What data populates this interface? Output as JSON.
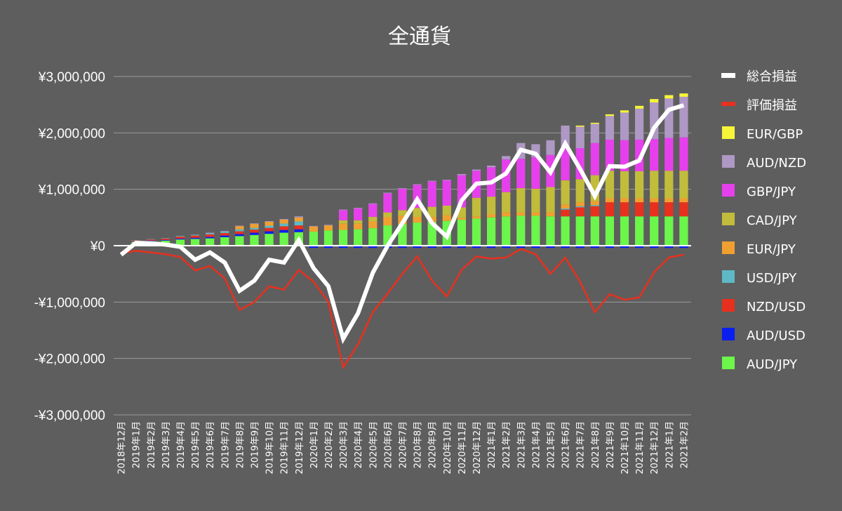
{
  "chart_data": {
    "type": "bar",
    "title": "全通貨",
    "ylim": [
      -3000000,
      3000000
    ],
    "yticks": [
      3000000,
      2000000,
      1000000,
      0,
      -1000000,
      -2000000,
      -3000000
    ],
    "ytick_labels": [
      "¥3,000,000",
      "¥2,000,000",
      "¥1,000,000",
      "¥0",
      "-¥1,000,000",
      "-¥2,000,000",
      "-¥3,000,000"
    ],
    "grid": true,
    "legend_position": "right",
    "categories": [
      "2018年12月",
      "2019年1月",
      "2019年2月",
      "2019年3月",
      "2019年4月",
      "2019年5月",
      "2019年6月",
      "2019年7月",
      "2019年8月",
      "2019年9月",
      "2019年10月",
      "2019年11月",
      "2019年12月",
      "2020年1月",
      "2020年2月",
      "2020年3月",
      "2020年4月",
      "2020年5月",
      "2020年6月",
      "2020年7月",
      "2020年8月",
      "2020年9月",
      "2020年10月",
      "2020年11月",
      "2020年12月",
      "2021年1月",
      "2021年2月",
      "2021年3月",
      "2021年4月",
      "2021年5月",
      "2021年6月",
      "2021年7月",
      "2021年8月",
      "2021年9月",
      "2021年10月",
      "2021年11月",
      "2021年12月",
      "2021年1月",
      "2021年2月"
    ],
    "bar_series": [
      {
        "name": "AUD/JPY",
        "color": "#6cf54a",
        "values": [
          0,
          70000,
          80000,
          90000,
          110000,
          120000,
          130000,
          150000,
          170000,
          190000,
          210000,
          230000,
          240000,
          250000,
          270000,
          280000,
          290000,
          310000,
          360000,
          380000,
          410000,
          420000,
          440000,
          460000,
          480000,
          500000,
          520000,
          530000,
          530000,
          520000,
          520000,
          520000,
          520000,
          520000,
          520000,
          520000,
          520000,
          520000,
          520000
        ]
      },
      {
        "name": "AUD/USD",
        "color": "#0a1ef0",
        "values": [
          0,
          8000,
          10000,
          12000,
          15000,
          20000,
          25000,
          30000,
          35000,
          40000,
          45000,
          48000,
          50000,
          -40000,
          -40000,
          -40000,
          -40000,
          -40000,
          -40000,
          -40000,
          -40000,
          -40000,
          -40000,
          -40000,
          -40000,
          -40000,
          -40000,
          -40000,
          -40000,
          -40000,
          -40000,
          -40000,
          -40000,
          -40000,
          -40000,
          -40000,
          -40000,
          -40000,
          -40000
        ]
      },
      {
        "name": "NZD/USD",
        "color": "#e8301e",
        "values": [
          0,
          15000,
          20000,
          25000,
          35000,
          40000,
          45000,
          45000,
          50000,
          55000,
          60000,
          65000,
          70000,
          0,
          0,
          0,
          0,
          0,
          0,
          0,
          0,
          0,
          0,
          0,
          0,
          0,
          0,
          0,
          0,
          0,
          120000,
          160000,
          180000,
          250000,
          250000,
          250000,
          250000,
          250000,
          250000
        ]
      },
      {
        "name": "USD/JPY",
        "color": "#5db9c6",
        "values": [
          0,
          5000,
          7000,
          8000,
          12000,
          15000,
          20000,
          25000,
          35000,
          30000,
          40000,
          50000,
          70000,
          0,
          0,
          0,
          0,
          0,
          0,
          0,
          0,
          0,
          0,
          0,
          0,
          0,
          0,
          0,
          0,
          0,
          20000,
          20000,
          20000,
          0,
          0,
          0,
          0,
          0,
          0
        ]
      },
      {
        "name": "EUR/JPY",
        "color": "#f0a030",
        "values": [
          0,
          0,
          0,
          0,
          0,
          0,
          0,
          0,
          55000,
          70000,
          70000,
          70000,
          70000,
          90000,
          90000,
          110000,
          100000,
          120000,
          150000,
          150000,
          100000,
          90000,
          100000,
          30000,
          40000,
          60000,
          70000,
          60000,
          60000,
          70000,
          70000,
          70000,
          70000,
          70000,
          70000,
          70000,
          70000,
          70000,
          70000
        ]
      },
      {
        "name": "CAD/JPY",
        "color": "#c2bc3c",
        "values": [
          0,
          0,
          0,
          0,
          0,
          0,
          0,
          0,
          0,
          0,
          0,
          0,
          0,
          0,
          0,
          60000,
          60000,
          80000,
          80000,
          100000,
          160000,
          180000,
          170000,
          190000,
          330000,
          310000,
          360000,
          430000,
          420000,
          450000,
          430000,
          410000,
          460000,
          490000,
          480000,
          480000,
          490000,
          490000,
          490000
        ]
      },
      {
        "name": "GBP/JPY",
        "color": "#e640ec",
        "values": [
          0,
          0,
          0,
          0,
          0,
          0,
          0,
          0,
          0,
          0,
          0,
          0,
          0,
          0,
          0,
          180000,
          210000,
          230000,
          340000,
          380000,
          410000,
          450000,
          450000,
          570000,
          480000,
          520000,
          580000,
          520000,
          560000,
          570000,
          590000,
          550000,
          570000,
          550000,
          550000,
          560000,
          560000,
          580000,
          590000
        ]
      },
      {
        "name": "AUD/NZD",
        "color": "#ae98c4",
        "values": [
          0,
          0,
          0,
          0,
          0,
          0,
          10000,
          10000,
          10000,
          10000,
          10000,
          10000,
          20000,
          10000,
          10000,
          10000,
          10000,
          10000,
          10000,
          10000,
          10000,
          10000,
          10000,
          20000,
          20000,
          30000,
          60000,
          280000,
          230000,
          260000,
          380000,
          380000,
          340000,
          420000,
          490000,
          550000,
          650000,
          700000,
          720000
        ]
      },
      {
        "name": "EUR/GBP",
        "color": "#f7f53a",
        "values": [
          0,
          0,
          0,
          0,
          0,
          0,
          0,
          0,
          0,
          0,
          0,
          0,
          0,
          0,
          0,
          0,
          0,
          0,
          0,
          0,
          0,
          0,
          0,
          0,
          0,
          0,
          0,
          0,
          0,
          0,
          0,
          20000,
          20000,
          30000,
          40000,
          50000,
          60000,
          60000,
          60000
        ]
      }
    ],
    "line_series": [
      {
        "name": "評価損益",
        "color": "#e8301e",
        "values": [
          -140000,
          -90000,
          -120000,
          -150000,
          -200000,
          -440000,
          -360000,
          -580000,
          -1140000,
          -1000000,
          -720000,
          -780000,
          -430000,
          -640000,
          -1000000,
          -2160000,
          -1750000,
          -1180000,
          -850000,
          -500000,
          -190000,
          -620000,
          -900000,
          -430000,
          -190000,
          -230000,
          -210000,
          -60000,
          -150000,
          -500000,
          -210000,
          -640000,
          -1180000,
          -860000,
          -960000,
          -920000,
          -470000,
          -210000,
          -160000
        ]
      },
      {
        "name": "総合損益",
        "color": "#ffffff",
        "values": [
          -160000,
          50000,
          40000,
          20000,
          -20000,
          -250000,
          -120000,
          -300000,
          -800000,
          -620000,
          -250000,
          -300000,
          100000,
          -400000,
          -720000,
          -1650000,
          -1200000,
          -480000,
          0,
          400000,
          820000,
          400000,
          160000,
          800000,
          1100000,
          1120000,
          1280000,
          1700000,
          1630000,
          1300000,
          1810000,
          1360000,
          880000,
          1410000,
          1400000,
          1510000,
          2090000,
          2410000,
          2490000
        ]
      }
    ],
    "legend": [
      {
        "name": "総合損益",
        "color": "#ffffff",
        "kind": "line"
      },
      {
        "name": "評価損益",
        "color": "#e8301e",
        "kind": "line"
      },
      {
        "name": "EUR/GBP",
        "color": "#f7f53a",
        "kind": "box"
      },
      {
        "name": "AUD/NZD",
        "color": "#ae98c4",
        "kind": "box"
      },
      {
        "name": "GBP/JPY",
        "color": "#e640ec",
        "kind": "box"
      },
      {
        "name": "CAD/JPY",
        "color": "#c2bc3c",
        "kind": "box"
      },
      {
        "name": "EUR/JPY",
        "color": "#f0a030",
        "kind": "box"
      },
      {
        "name": "USD/JPY",
        "color": "#5db9c6",
        "kind": "box"
      },
      {
        "name": "NZD/USD",
        "color": "#e8301e",
        "kind": "box"
      },
      {
        "name": "AUD/USD",
        "color": "#0a1ef0",
        "kind": "box"
      },
      {
        "name": "AUD/JPY",
        "color": "#6cf54a",
        "kind": "box"
      }
    ]
  }
}
